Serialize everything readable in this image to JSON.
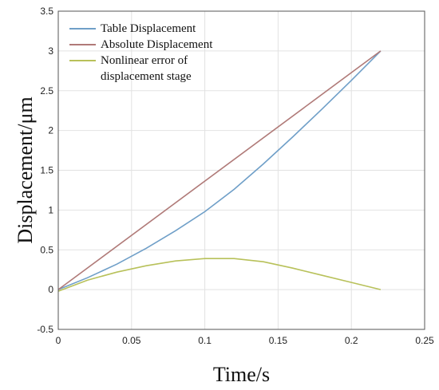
{
  "chart_data": {
    "type": "line",
    "title": "",
    "xlabel": "Time/s",
    "ylabel": "Displacement/μm",
    "xlim": [
      0,
      0.25
    ],
    "ylim": [
      -0.5,
      3.5
    ],
    "xticks": [
      "0",
      "0.05",
      "0.1",
      "0.15",
      "0.2",
      "0.25"
    ],
    "yticks": [
      "-0.5",
      "0",
      "0.5",
      "1",
      "1.5",
      "2",
      "2.5",
      "3",
      "3.5"
    ],
    "grid": true,
    "legend_position": "top-left",
    "legend_lines": [
      [
        "Table Displacement"
      ],
      [
        "Absolute Displacement"
      ],
      [
        "Nonlinear error of",
        "displacement stage"
      ]
    ],
    "series": [
      {
        "name": "Table Displacement",
        "color": "#6f9fc8",
        "x": [
          0,
          0.02,
          0.04,
          0.06,
          0.08,
          0.1,
          0.12,
          0.14,
          0.16,
          0.18,
          0.2,
          0.22
        ],
        "y": [
          0,
          0.15,
          0.32,
          0.52,
          0.74,
          0.98,
          1.26,
          1.58,
          1.92,
          2.27,
          2.63,
          3.0
        ]
      },
      {
        "name": "Absolute Displacement",
        "color": "#b07a78",
        "x": [
          0,
          0.22
        ],
        "y": [
          0,
          3.0
        ]
      },
      {
        "name": "Nonlinear error of displacement stage",
        "color": "#b8c15a",
        "x": [
          0,
          0.02,
          0.04,
          0.06,
          0.08,
          0.1,
          0.12,
          0.14,
          0.16,
          0.18,
          0.2,
          0.22
        ],
        "y": [
          -0.02,
          0.12,
          0.22,
          0.3,
          0.36,
          0.39,
          0.39,
          0.35,
          0.27,
          0.18,
          0.09,
          0.0
        ]
      }
    ]
  }
}
